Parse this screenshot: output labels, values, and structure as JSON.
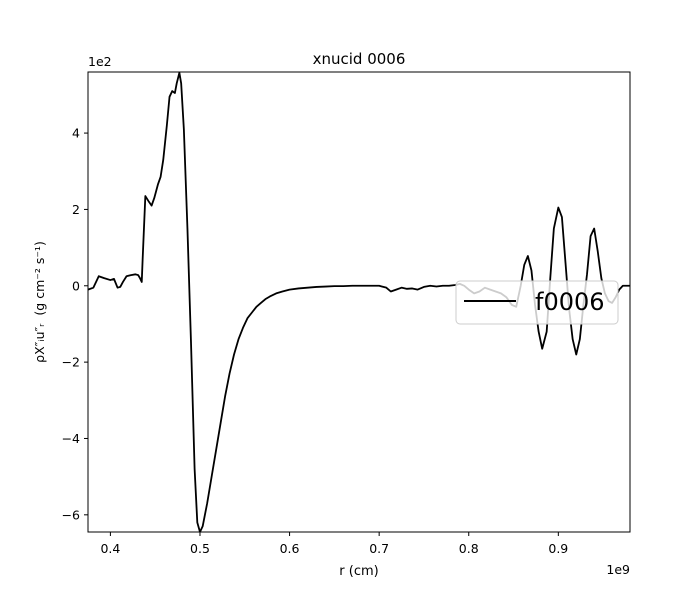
{
  "chart_data": {
    "type": "line",
    "title": "xnucid 0006",
    "xlabel": "r (cm)",
    "ylabel_main": "ρX″ᵢu″ᵣ",
    "ylabel_units": "(g cm⁻² s⁻¹)",
    "x_offset_label": "1e9",
    "y_offset_label": "1e2",
    "xlim": [
      0.375,
      0.98
    ],
    "ylim": [
      -6.45,
      5.6
    ],
    "x_ticks": [
      0.4,
      0.5,
      0.6,
      0.7,
      0.8,
      0.9
    ],
    "x_tick_labels": [
      "0.4",
      "0.5",
      "0.6",
      "0.7",
      "0.8",
      "0.9"
    ],
    "y_ticks": [
      -6,
      -4,
      -2,
      0,
      2,
      4
    ],
    "y_tick_labels": [
      "−6",
      "−4",
      "−2",
      "0",
      "2",
      "4"
    ],
    "grid": false,
    "legend_position": "center-right",
    "line_color": "#000000",
    "series": [
      {
        "name": "f0006",
        "x": [
          0.375,
          0.381,
          0.387,
          0.393,
          0.4,
          0.404,
          0.408,
          0.411,
          0.414,
          0.418,
          0.423,
          0.428,
          0.431,
          0.433,
          0.435,
          0.436,
          0.439,
          0.443,
          0.446,
          0.449,
          0.453,
          0.456,
          0.459,
          0.463,
          0.466,
          0.469,
          0.472,
          0.474,
          0.477,
          0.479,
          0.482,
          0.486,
          0.49,
          0.494,
          0.497,
          0.5,
          0.503,
          0.508,
          0.513,
          0.518,
          0.523,
          0.528,
          0.533,
          0.538,
          0.543,
          0.548,
          0.553,
          0.558,
          0.563,
          0.568,
          0.573,
          0.578,
          0.585,
          0.592,
          0.6,
          0.61,
          0.62,
          0.63,
          0.64,
          0.65,
          0.66,
          0.67,
          0.68,
          0.69,
          0.7,
          0.708,
          0.713,
          0.719,
          0.725,
          0.731,
          0.737,
          0.743,
          0.75,
          0.757,
          0.764,
          0.771,
          0.778,
          0.785,
          0.79,
          0.795,
          0.8,
          0.806,
          0.812,
          0.818,
          0.824,
          0.83,
          0.836,
          0.842,
          0.848,
          0.853,
          0.858,
          0.862,
          0.866,
          0.87,
          0.874,
          0.878,
          0.882,
          0.887,
          0.891,
          0.895,
          0.9,
          0.904,
          0.908,
          0.912,
          0.916,
          0.92,
          0.924,
          0.928,
          0.932,
          0.936,
          0.94,
          0.944,
          0.948,
          0.952,
          0.956,
          0.96,
          0.964,
          0.968,
          0.972,
          0.976,
          0.98
        ],
        "y": [
          -0.1,
          -0.05,
          0.25,
          0.2,
          0.15,
          0.18,
          -0.05,
          -0.03,
          0.1,
          0.25,
          0.28,
          0.3,
          0.28,
          0.2,
          0.1,
          0.7,
          2.35,
          2.2,
          2.1,
          2.3,
          2.65,
          2.85,
          3.3,
          4.2,
          4.95,
          5.1,
          5.05,
          5.3,
          5.58,
          5.3,
          4.1,
          1.5,
          -1.5,
          -4.8,
          -6.2,
          -6.45,
          -6.3,
          -5.7,
          -5.0,
          -4.3,
          -3.6,
          -2.9,
          -2.3,
          -1.8,
          -1.4,
          -1.1,
          -0.85,
          -0.7,
          -0.55,
          -0.45,
          -0.35,
          -0.28,
          -0.2,
          -0.15,
          -0.1,
          -0.07,
          -0.05,
          -0.03,
          -0.02,
          -0.01,
          -0.01,
          0.0,
          0.0,
          0.0,
          0.0,
          -0.05,
          -0.15,
          -0.1,
          -0.05,
          -0.08,
          -0.07,
          -0.1,
          -0.03,
          0.0,
          -0.02,
          0.0,
          0.0,
          0.02,
          0.05,
          0.0,
          -0.1,
          -0.2,
          -0.15,
          -0.05,
          -0.1,
          -0.15,
          -0.2,
          -0.3,
          -0.5,
          -0.55,
          0.0,
          0.55,
          0.78,
          0.4,
          -0.5,
          -1.2,
          -1.65,
          -1.2,
          0.2,
          1.5,
          2.05,
          1.8,
          0.6,
          -0.6,
          -1.4,
          -1.8,
          -1.4,
          -0.5,
          0.3,
          1.3,
          1.5,
          0.9,
          0.2,
          -0.2,
          -0.4,
          -0.45,
          -0.3,
          -0.1,
          0.0,
          0.0,
          0.0
        ]
      }
    ]
  }
}
